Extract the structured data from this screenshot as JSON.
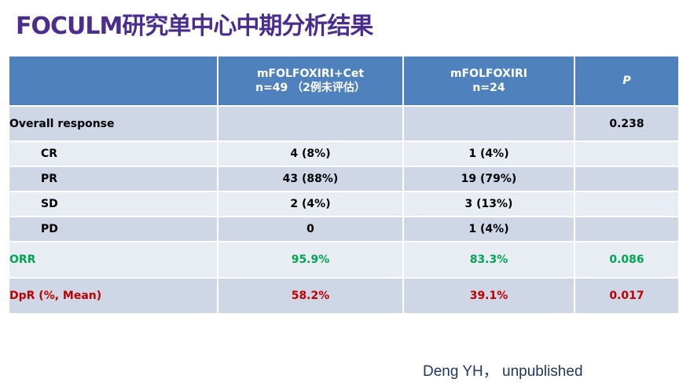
{
  "title": "FOCULM研究单中心中期分析结果",
  "table": {
    "headers": {
      "col0": "",
      "col1_line1": "mFOLFOXIRI+Cet",
      "col1_line2": "n=49 （2例未评估）",
      "col2_line1": "mFOLFOXIRI",
      "col2_line2": "n=24",
      "col3": "P"
    },
    "rows": [
      {
        "label": "Overall response",
        "arm1": "",
        "arm2": "",
        "p": "0.238"
      },
      {
        "label": "CR",
        "arm1": "4 (8%)",
        "arm2": "1 (4%)",
        "p": ""
      },
      {
        "label": "PR",
        "arm1": "43 (88%)",
        "arm2": "19 (79%)",
        "p": ""
      },
      {
        "label": "SD",
        "arm1": "2 (4%)",
        "arm2": "3 (13%)",
        "p": ""
      },
      {
        "label": "PD",
        "arm1": "0",
        "arm2": "1 (4%)",
        "p": ""
      },
      {
        "label": "ORR",
        "arm1": "95.9%",
        "arm2": "83.3%",
        "p": "0.086"
      },
      {
        "label": "DpR (%, Mean)",
        "arm1": "58.2%",
        "arm2": "39.1%",
        "p": "0.017"
      }
    ]
  },
  "citation": "Deng YH，  unpublished",
  "colors": {
    "title": "#4a2d8f",
    "header_bg": "#4f81bd",
    "row_dark": "#cfd7e6",
    "row_light": "#e8ecf3",
    "orr_green": "#00a651",
    "dpr_red": "#c00000"
  }
}
